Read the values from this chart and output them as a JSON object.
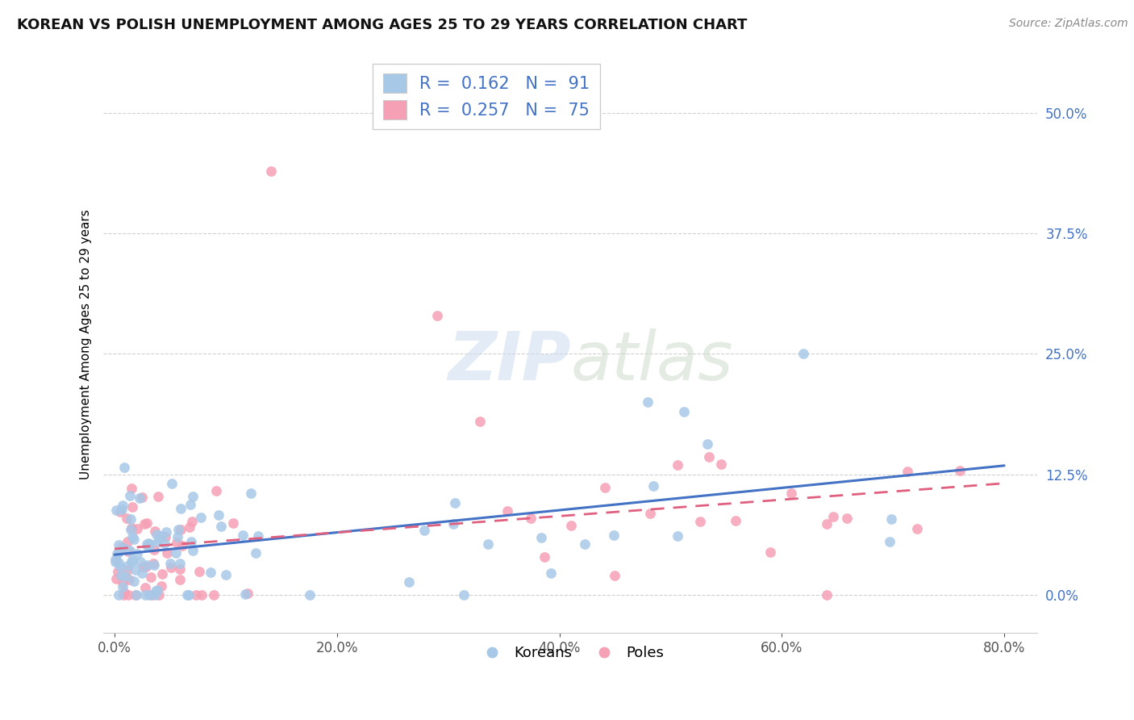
{
  "title": "KOREAN VS POLISH UNEMPLOYMENT AMONG AGES 25 TO 29 YEARS CORRELATION CHART",
  "source": "Source: ZipAtlas.com",
  "xlabel_ticks": [
    "0.0%",
    "20.0%",
    "40.0%",
    "60.0%",
    "80.0%"
  ],
  "xlabel_vals": [
    0.0,
    20.0,
    40.0,
    60.0,
    80.0
  ],
  "ylabel_ticks": [
    "0.0%",
    "12.5%",
    "25.0%",
    "37.5%",
    "50.0%"
  ],
  "ylabel_vals": [
    0.0,
    12.5,
    25.0,
    37.5,
    50.0
  ],
  "xlim": [
    -1,
    83
  ],
  "ylim": [
    -4,
    56
  ],
  "korean_R": 0.162,
  "korean_N": 91,
  "polish_R": 0.257,
  "polish_N": 75,
  "korean_color": "#a8c8e8",
  "polish_color": "#f5a0b5",
  "korean_line_color": "#4472c4",
  "polish_line_color": "#e06080",
  "watermark_text": "ZIPatlas",
  "ylabel": "Unemployment Among Ages 25 to 29 years",
  "legend_entries": [
    "Koreans",
    "Poles"
  ],
  "title_fontsize": 13,
  "axis_fontsize": 12,
  "legend_fontsize": 15
}
